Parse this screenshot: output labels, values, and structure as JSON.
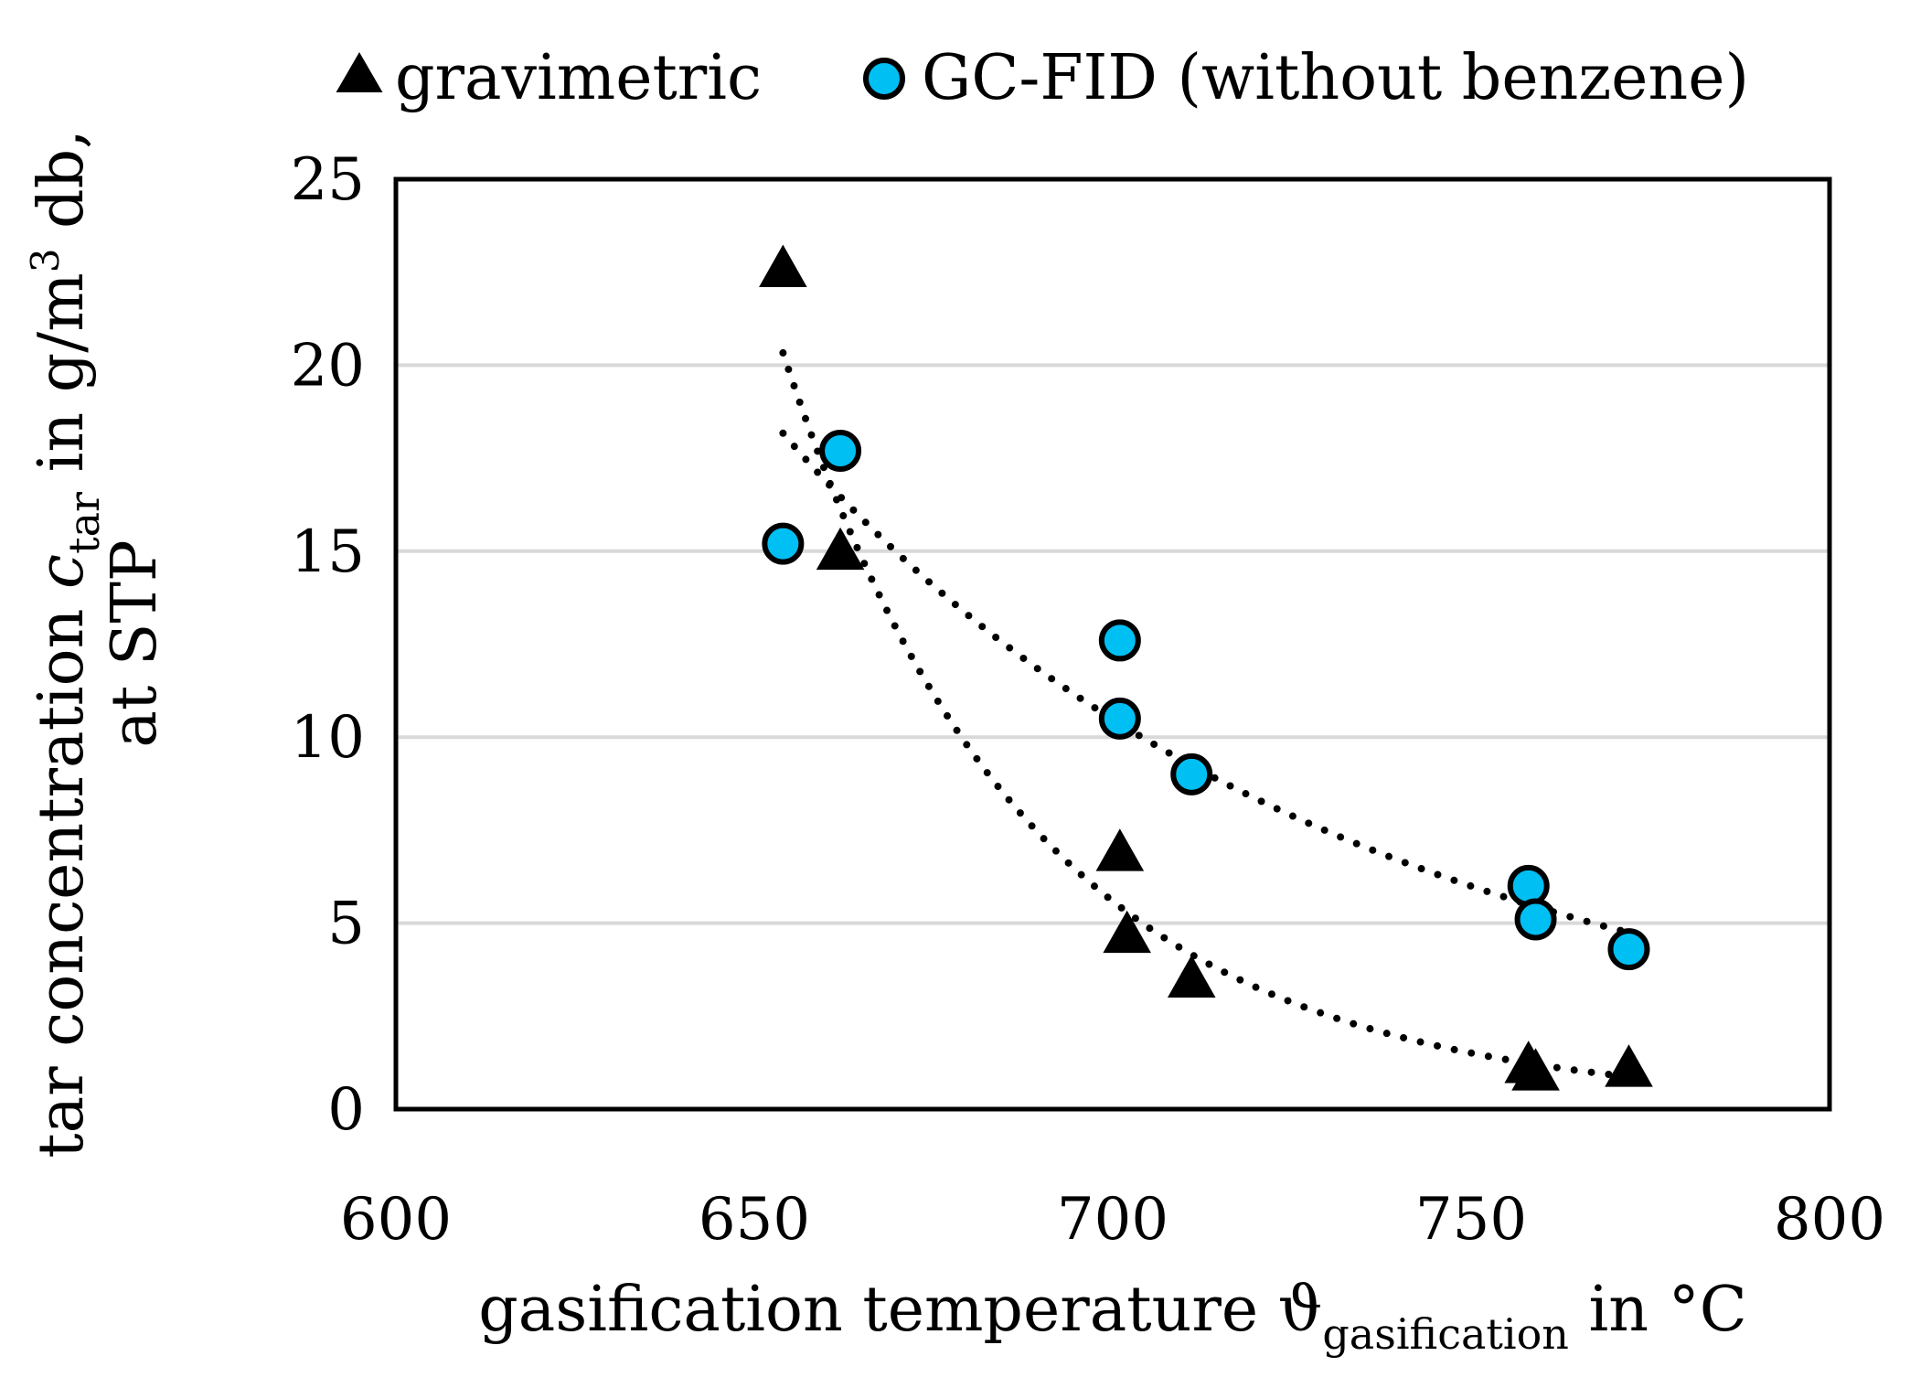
{
  "chart_data": {
    "type": "scatter",
    "title": "",
    "xlabel": {
      "prefix": "gasification temperature ϑ",
      "subscript": "gasification",
      "suffix": " in °C"
    },
    "ylabel": {
      "line1_prefix": "tar concentration ",
      "line1_symbol": "c",
      "line1_subscript": "tar",
      "line1_mid": " in g/m",
      "line1_sup": "3",
      "line1_suffix": " db,",
      "line2": "at STP"
    },
    "xlim": [
      600,
      800
    ],
    "ylim": [
      0,
      25
    ],
    "xticks": [
      "600",
      "650",
      "700",
      "750",
      "800"
    ],
    "yticks": [
      "0",
      "5",
      "10",
      "15",
      "20",
      "25"
    ],
    "grid": "horizontal",
    "legend_position": "top",
    "series": [
      {
        "name": "gravimetric",
        "marker": "triangle",
        "color": "#000000",
        "x": [
          654,
          662,
          701,
          702,
          711,
          758,
          759,
          772
        ],
        "y": [
          22.6,
          15.0,
          6.9,
          4.7,
          3.5,
          1.2,
          1.0,
          1.1
        ],
        "trendline": {
          "type": "power",
          "x_range": [
            654,
            772
          ],
          "color": "#000000"
        }
      },
      {
        "name": "GC-FID (without benzene)",
        "marker": "circle",
        "color": "#00bff3",
        "x": [
          654,
          662,
          701,
          701,
          711,
          758,
          759,
          772
        ],
        "y": [
          15.2,
          17.7,
          12.6,
          10.5,
          9.0,
          6.0,
          5.1,
          4.3
        ],
        "trendline": {
          "type": "power",
          "x_range": [
            654,
            772
          ],
          "color": "#000000"
        }
      }
    ]
  }
}
